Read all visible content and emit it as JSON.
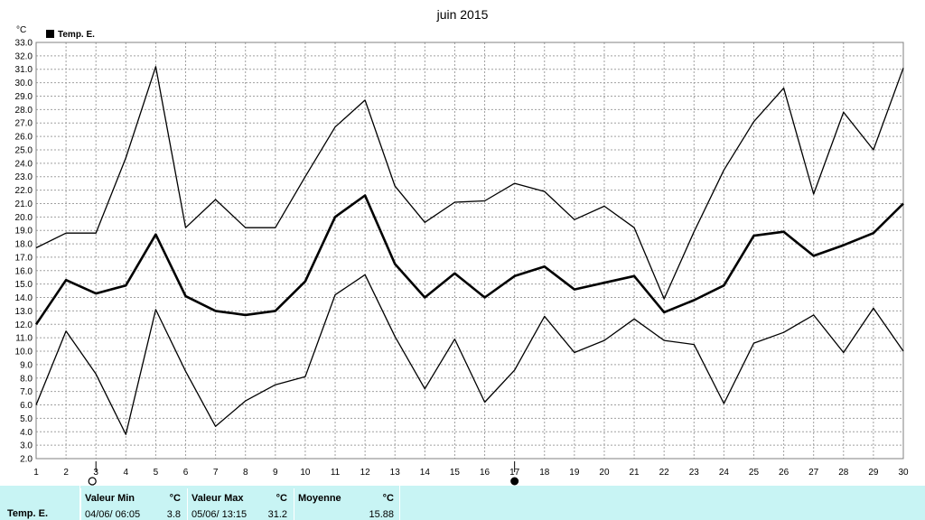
{
  "chart_data": {
    "type": "line",
    "title": "juin 2015",
    "ylabel": "°C",
    "xlabel": "",
    "ylim": [
      2.0,
      33.0
    ],
    "ytick_step": 1.0,
    "x": [
      1,
      2,
      3,
      4,
      5,
      6,
      7,
      8,
      9,
      10,
      11,
      12,
      13,
      14,
      15,
      16,
      17,
      18,
      19,
      20,
      21,
      22,
      23,
      24,
      25,
      26,
      27,
      28,
      29,
      30
    ],
    "legend": [
      "Temp. E."
    ],
    "legend_position": "top-left",
    "grid": true,
    "series": [
      {
        "name": "Temp. E.",
        "role": "max",
        "values": [
          17.7,
          18.8,
          18.8,
          24.4,
          31.2,
          19.2,
          21.3,
          19.2,
          19.2,
          23.0,
          26.7,
          28.7,
          22.3,
          19.6,
          21.1,
          21.2,
          22.5,
          21.9,
          19.8,
          20.8,
          19.2,
          13.9,
          18.9,
          23.5,
          27.1,
          29.6,
          21.7,
          27.8,
          25.0,
          31.1
        ]
      },
      {
        "name": "",
        "role": "mean",
        "values": [
          12.0,
          15.3,
          14.3,
          14.9,
          18.7,
          14.1,
          13.0,
          12.7,
          13.0,
          15.2,
          20.0,
          21.6,
          16.5,
          14.0,
          15.8,
          14.0,
          15.6,
          16.3,
          14.6,
          15.1,
          15.6,
          12.9,
          13.8,
          14.9,
          18.6,
          18.9,
          17.1,
          17.9,
          18.8,
          21.0
        ]
      },
      {
        "name": "",
        "role": "min",
        "values": [
          6.0,
          11.5,
          8.3,
          3.8,
          13.1,
          8.5,
          4.4,
          6.3,
          7.5,
          8.1,
          14.2,
          15.7,
          11.1,
          7.2,
          10.9,
          6.2,
          8.6,
          12.6,
          9.9,
          10.8,
          12.4,
          10.8,
          10.5,
          6.1,
          10.6,
          11.4,
          12.7,
          9.9,
          13.2,
          10.0
        ]
      }
    ],
    "moon_markers": [
      {
        "day": 3,
        "phase": "first-quarter-moon"
      },
      {
        "day": 17,
        "phase": "full-moon"
      }
    ]
  },
  "footer": {
    "series_name": "Temp. E.",
    "min": {
      "header": "Valeur Min",
      "unit": "°C",
      "date": "04/06/  06:05",
      "value": "3.8"
    },
    "max": {
      "header": "Valeur Max",
      "unit": "°C",
      "date": "05/06/  13:15",
      "value": "31.2"
    },
    "mean": {
      "header": "Moyenne",
      "unit": "°C",
      "value": "15.88"
    }
  }
}
